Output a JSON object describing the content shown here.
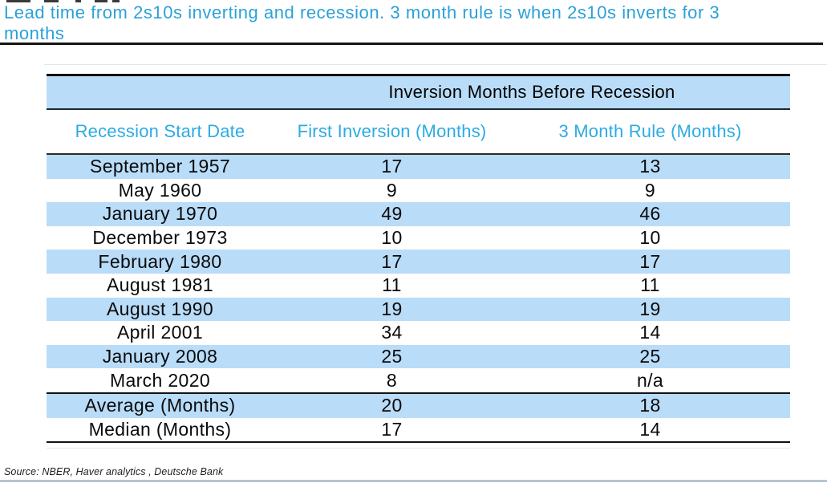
{
  "figure": {
    "title_line1": "Lead time from 2s10s inverting and recession. 3 month rule is when 2s10s inverts for 3",
    "title_line2": "months",
    "source": "Source: NBER, Haver analytics , Deutsche Bank"
  },
  "table": {
    "group_header": "Inversion Months Before Recession",
    "columns": {
      "date": "Recession Start Date",
      "first_inversion": "First Inversion (Months)",
      "three_month_rule": "3 Month Rule (Months)"
    },
    "rows": [
      {
        "date": "September 1957",
        "first_inversion": "17",
        "three_month_rule": "13"
      },
      {
        "date": "May 1960",
        "first_inversion": "9",
        "three_month_rule": "9"
      },
      {
        "date": "January 1970",
        "first_inversion": "49",
        "three_month_rule": "46"
      },
      {
        "date": "December 1973",
        "first_inversion": "10",
        "three_month_rule": "10"
      },
      {
        "date": "February 1980",
        "first_inversion": "17",
        "three_month_rule": "17"
      },
      {
        "date": "August 1981",
        "first_inversion": "11",
        "three_month_rule": "11"
      },
      {
        "date": "August 1990",
        "first_inversion": "19",
        "three_month_rule": "19"
      },
      {
        "date": "April 2001",
        "first_inversion": "34",
        "three_month_rule": "14"
      },
      {
        "date": "January 2008",
        "first_inversion": "25",
        "three_month_rule": "25"
      },
      {
        "date": "March 2020",
        "first_inversion": "8",
        "three_month_rule": "n/a"
      }
    ],
    "summary_rows": [
      {
        "date": "Average (Months)",
        "first_inversion": "20",
        "three_month_rule": "18"
      },
      {
        "date": "Median (Months)",
        "first_inversion": "17",
        "three_month_rule": "14"
      }
    ]
  },
  "colors": {
    "title_blue": "#2aa1d8",
    "header_blue": "#2cabe2",
    "row_highlight_blue": "#b9dcf8",
    "bottom_rule_gray_blue": "#b5c4cf"
  }
}
